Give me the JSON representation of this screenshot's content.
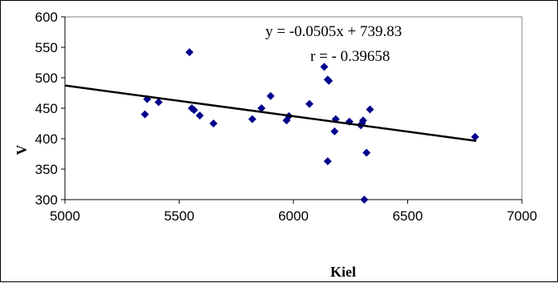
{
  "chart_data": {
    "type": "scatter",
    "title": "",
    "xlabel": "Kiel",
    "ylabel": "V",
    "xlim": [
      5000,
      7000
    ],
    "ylim": [
      300,
      600
    ],
    "x_ticks": [
      "5000",
      "5500",
      "6000",
      "6500",
      "7000"
    ],
    "y_ticks": [
      "300",
      "350",
      "400",
      "450",
      "500",
      "550",
      "600"
    ],
    "grid": false,
    "legend": "none",
    "marker_color": "#00008B",
    "trendline_color": "#000000",
    "trendline": {
      "slope": -0.0505,
      "intercept": 739.83
    },
    "annotations": {
      "equation": "y = -0.0505x + 739.83",
      "r": "r = - 0.39658"
    },
    "points": [
      {
        "x": 5350,
        "y": 440
      },
      {
        "x": 5360,
        "y": 465
      },
      {
        "x": 5410,
        "y": 460
      },
      {
        "x": 5545,
        "y": 542
      },
      {
        "x": 5555,
        "y": 450
      },
      {
        "x": 5565,
        "y": 447
      },
      {
        "x": 5590,
        "y": 438
      },
      {
        "x": 5650,
        "y": 425
      },
      {
        "x": 5820,
        "y": 432
      },
      {
        "x": 5860,
        "y": 450
      },
      {
        "x": 5900,
        "y": 470
      },
      {
        "x": 5970,
        "y": 430
      },
      {
        "x": 5980,
        "y": 437
      },
      {
        "x": 6070,
        "y": 457
      },
      {
        "x": 6135,
        "y": 518
      },
      {
        "x": 6150,
        "y": 497
      },
      {
        "x": 6155,
        "y": 495
      },
      {
        "x": 6150,
        "y": 363
      },
      {
        "x": 6180,
        "y": 412
      },
      {
        "x": 6185,
        "y": 432
      },
      {
        "x": 6245,
        "y": 428
      },
      {
        "x": 6295,
        "y": 422
      },
      {
        "x": 6300,
        "y": 425
      },
      {
        "x": 6305,
        "y": 430
      },
      {
        "x": 6310,
        "y": 300
      },
      {
        "x": 6320,
        "y": 377
      },
      {
        "x": 6335,
        "y": 448
      },
      {
        "x": 6795,
        "y": 403
      }
    ]
  }
}
